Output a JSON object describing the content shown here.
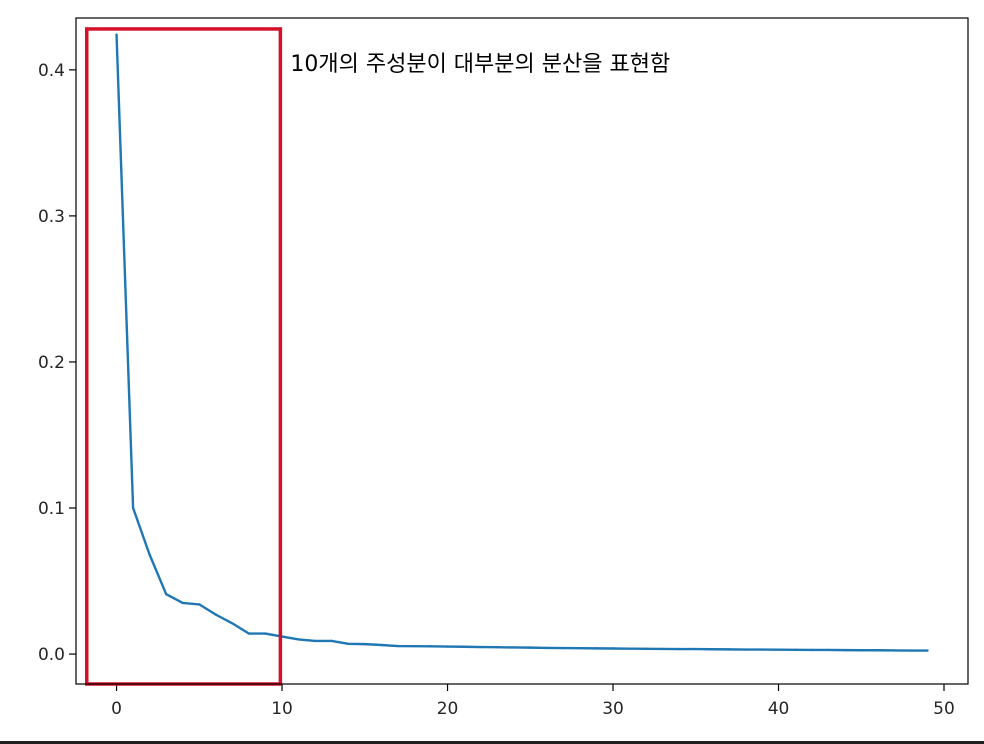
{
  "chart_data": {
    "type": "line",
    "title": "",
    "xlabel": "",
    "ylabel": "",
    "xlim": [
      -2.45,
      51.45
    ],
    "ylim": [
      -0.0205,
      0.4355
    ],
    "xticks": [
      0,
      10,
      20,
      30,
      40,
      50
    ],
    "xtick_labels": [
      "0",
      "10",
      "20",
      "30",
      "40",
      "50"
    ],
    "yticks": [
      0.0,
      0.1,
      0.2,
      0.3,
      0.4
    ],
    "ytick_labels": [
      "0.0",
      "0.1",
      "0.2",
      "0.3",
      "0.4"
    ],
    "grid": false,
    "legend": "none",
    "series": [
      {
        "color": "#1f77b4",
        "x": [
          0,
          1,
          2,
          3,
          4,
          5,
          6,
          7,
          8,
          9,
          10,
          11,
          12,
          13,
          14,
          15,
          16,
          17,
          18,
          19,
          20,
          21,
          22,
          23,
          24,
          25,
          26,
          27,
          28,
          29,
          30,
          31,
          32,
          33,
          34,
          35,
          36,
          37,
          38,
          39,
          40,
          41,
          42,
          43,
          44,
          45,
          46,
          47,
          48,
          49
        ],
        "values": [
          0.424,
          0.1,
          0.068,
          0.041,
          0.035,
          0.034,
          0.027,
          0.021,
          0.014,
          0.014,
          0.012,
          0.01,
          0.009,
          0.009,
          0.007,
          0.0068,
          0.0062,
          0.0055,
          0.0054,
          0.0053,
          0.0051,
          0.005,
          0.0048,
          0.0047,
          0.0045,
          0.0044,
          0.0042,
          0.0041,
          0.004,
          0.0039,
          0.0038,
          0.0037,
          0.0036,
          0.0035,
          0.0034,
          0.0034,
          0.0033,
          0.0032,
          0.0031,
          0.0031,
          0.003,
          0.0029,
          0.0028,
          0.0028,
          0.0027,
          0.0026,
          0.0026,
          0.0025,
          0.0024,
          0.0024
        ]
      }
    ],
    "annotation": {
      "text": "10개의 주성분이 대부분의 분산을 표현함",
      "box_x": [
        -1.8,
        9.9
      ],
      "box_y": [
        -0.0205,
        0.428
      ],
      "box_color": "#d6102a"
    }
  }
}
